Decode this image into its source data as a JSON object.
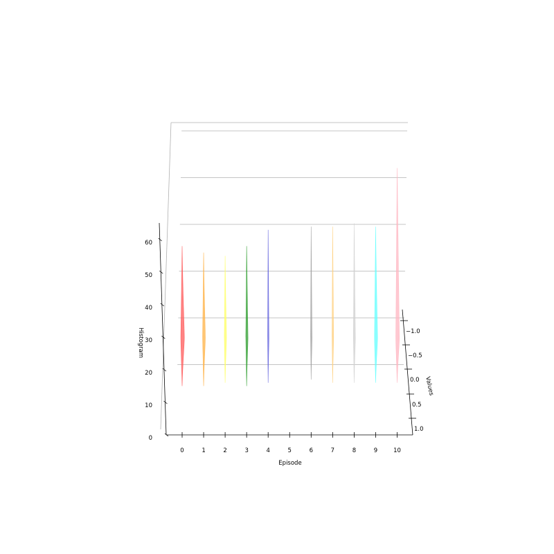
{
  "chart_data": {
    "type": "3d-histogram-ridges",
    "title": "",
    "xlabel": "Episode",
    "ylabel": "Values",
    "zlabel": "Histogram",
    "x_ticks": [
      "0",
      "1",
      "2",
      "3",
      "4",
      "5",
      "6",
      "7",
      "8",
      "9",
      "10"
    ],
    "y_ticks": [
      "−1.0",
      "−0.5",
      "0.0",
      "0.5",
      "1.0"
    ],
    "z_ticks": [
      "0",
      "10",
      "20",
      "30",
      "40",
      "50",
      "60"
    ],
    "xlim": [
      -0.75,
      10.75
    ],
    "ylim": [
      -1.25,
      1.25
    ],
    "zlim": [
      0,
      65
    ],
    "grid": true,
    "series": [
      {
        "episode": 0,
        "color": "#ff5a5a",
        "width": 1.0,
        "low": 15,
        "high": 58
      },
      {
        "episode": 1,
        "color": "#ffb347",
        "width": 0.75,
        "low": 15,
        "high": 56
      },
      {
        "episode": 2,
        "color": "#ffff66",
        "width": 0.6,
        "low": 16,
        "high": 55
      },
      {
        "episode": 3,
        "color": "#33a033",
        "width": 0.6,
        "low": 15,
        "high": 58
      },
      {
        "episode": 4,
        "color": "#6060dd",
        "width": 0.35,
        "low": 16,
        "high": 63
      },
      {
        "episode": 6,
        "color": "#a0a0a0",
        "width": 0.4,
        "low": 17,
        "high": 64
      },
      {
        "episode": 7,
        "color": "#ffd080",
        "width": 0.45,
        "low": 16,
        "high": 64
      },
      {
        "episode": 8,
        "color": "#d0d0d0",
        "width": 0.55,
        "low": 16,
        "high": 65
      },
      {
        "episode": 9,
        "color": "#66ffff",
        "width": 0.85,
        "low": 16,
        "high": 64
      },
      {
        "episode": 10,
        "color": "#ffb6c1",
        "width": 1.0,
        "low": 16,
        "high": 82
      }
    ]
  }
}
